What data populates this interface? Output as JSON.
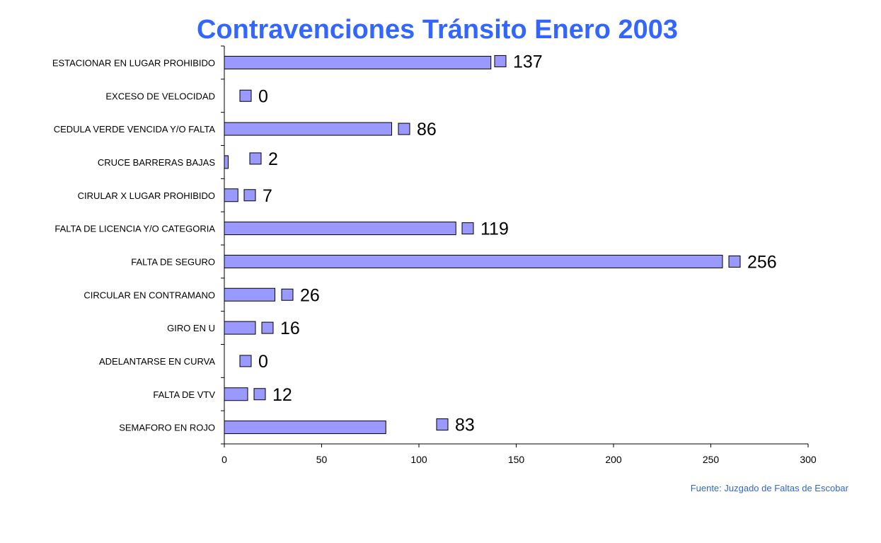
{
  "colors": {
    "title": "#3366FF",
    "bar_fill": "#9999FF",
    "bar_stroke": "#000000",
    "axis": "#000000",
    "source_text": "#3366CC"
  },
  "source_note": "Fuente: Juzgado de Faltas de Escobar",
  "chart_data": {
    "type": "bar",
    "orientation": "horizontal",
    "title": "Contravenciones Tránsito Enero 2003",
    "xlabel": "",
    "ylabel": "",
    "xlim": [
      0,
      300
    ],
    "x_ticks": [
      0,
      50,
      100,
      150,
      200,
      250,
      300
    ],
    "grid": false,
    "legend": "right",
    "categories": [
      "ESTACIONAR EN LUGAR PROHIBIDO",
      "EXCESO DE VELOCIDAD",
      "CEDULA VERDE VENCIDA Y/O FALTA",
      "CRUCE BARRERAS BAJAS",
      "CIRULAR X LUGAR PROHIBIDO",
      "FALTA DE LICENCIA Y/O CATEGORIA",
      "FALTA DE SEGURO",
      "CIRCULAR EN CONTRAMANO",
      "GIRO EN U",
      "ADELANTARSE EN CURVA",
      "FALTA DE VTV",
      "SEMAFORO EN ROJO"
    ],
    "values": [
      137,
      0,
      86,
      2,
      7,
      119,
      256,
      26,
      16,
      0,
      12,
      83
    ]
  }
}
